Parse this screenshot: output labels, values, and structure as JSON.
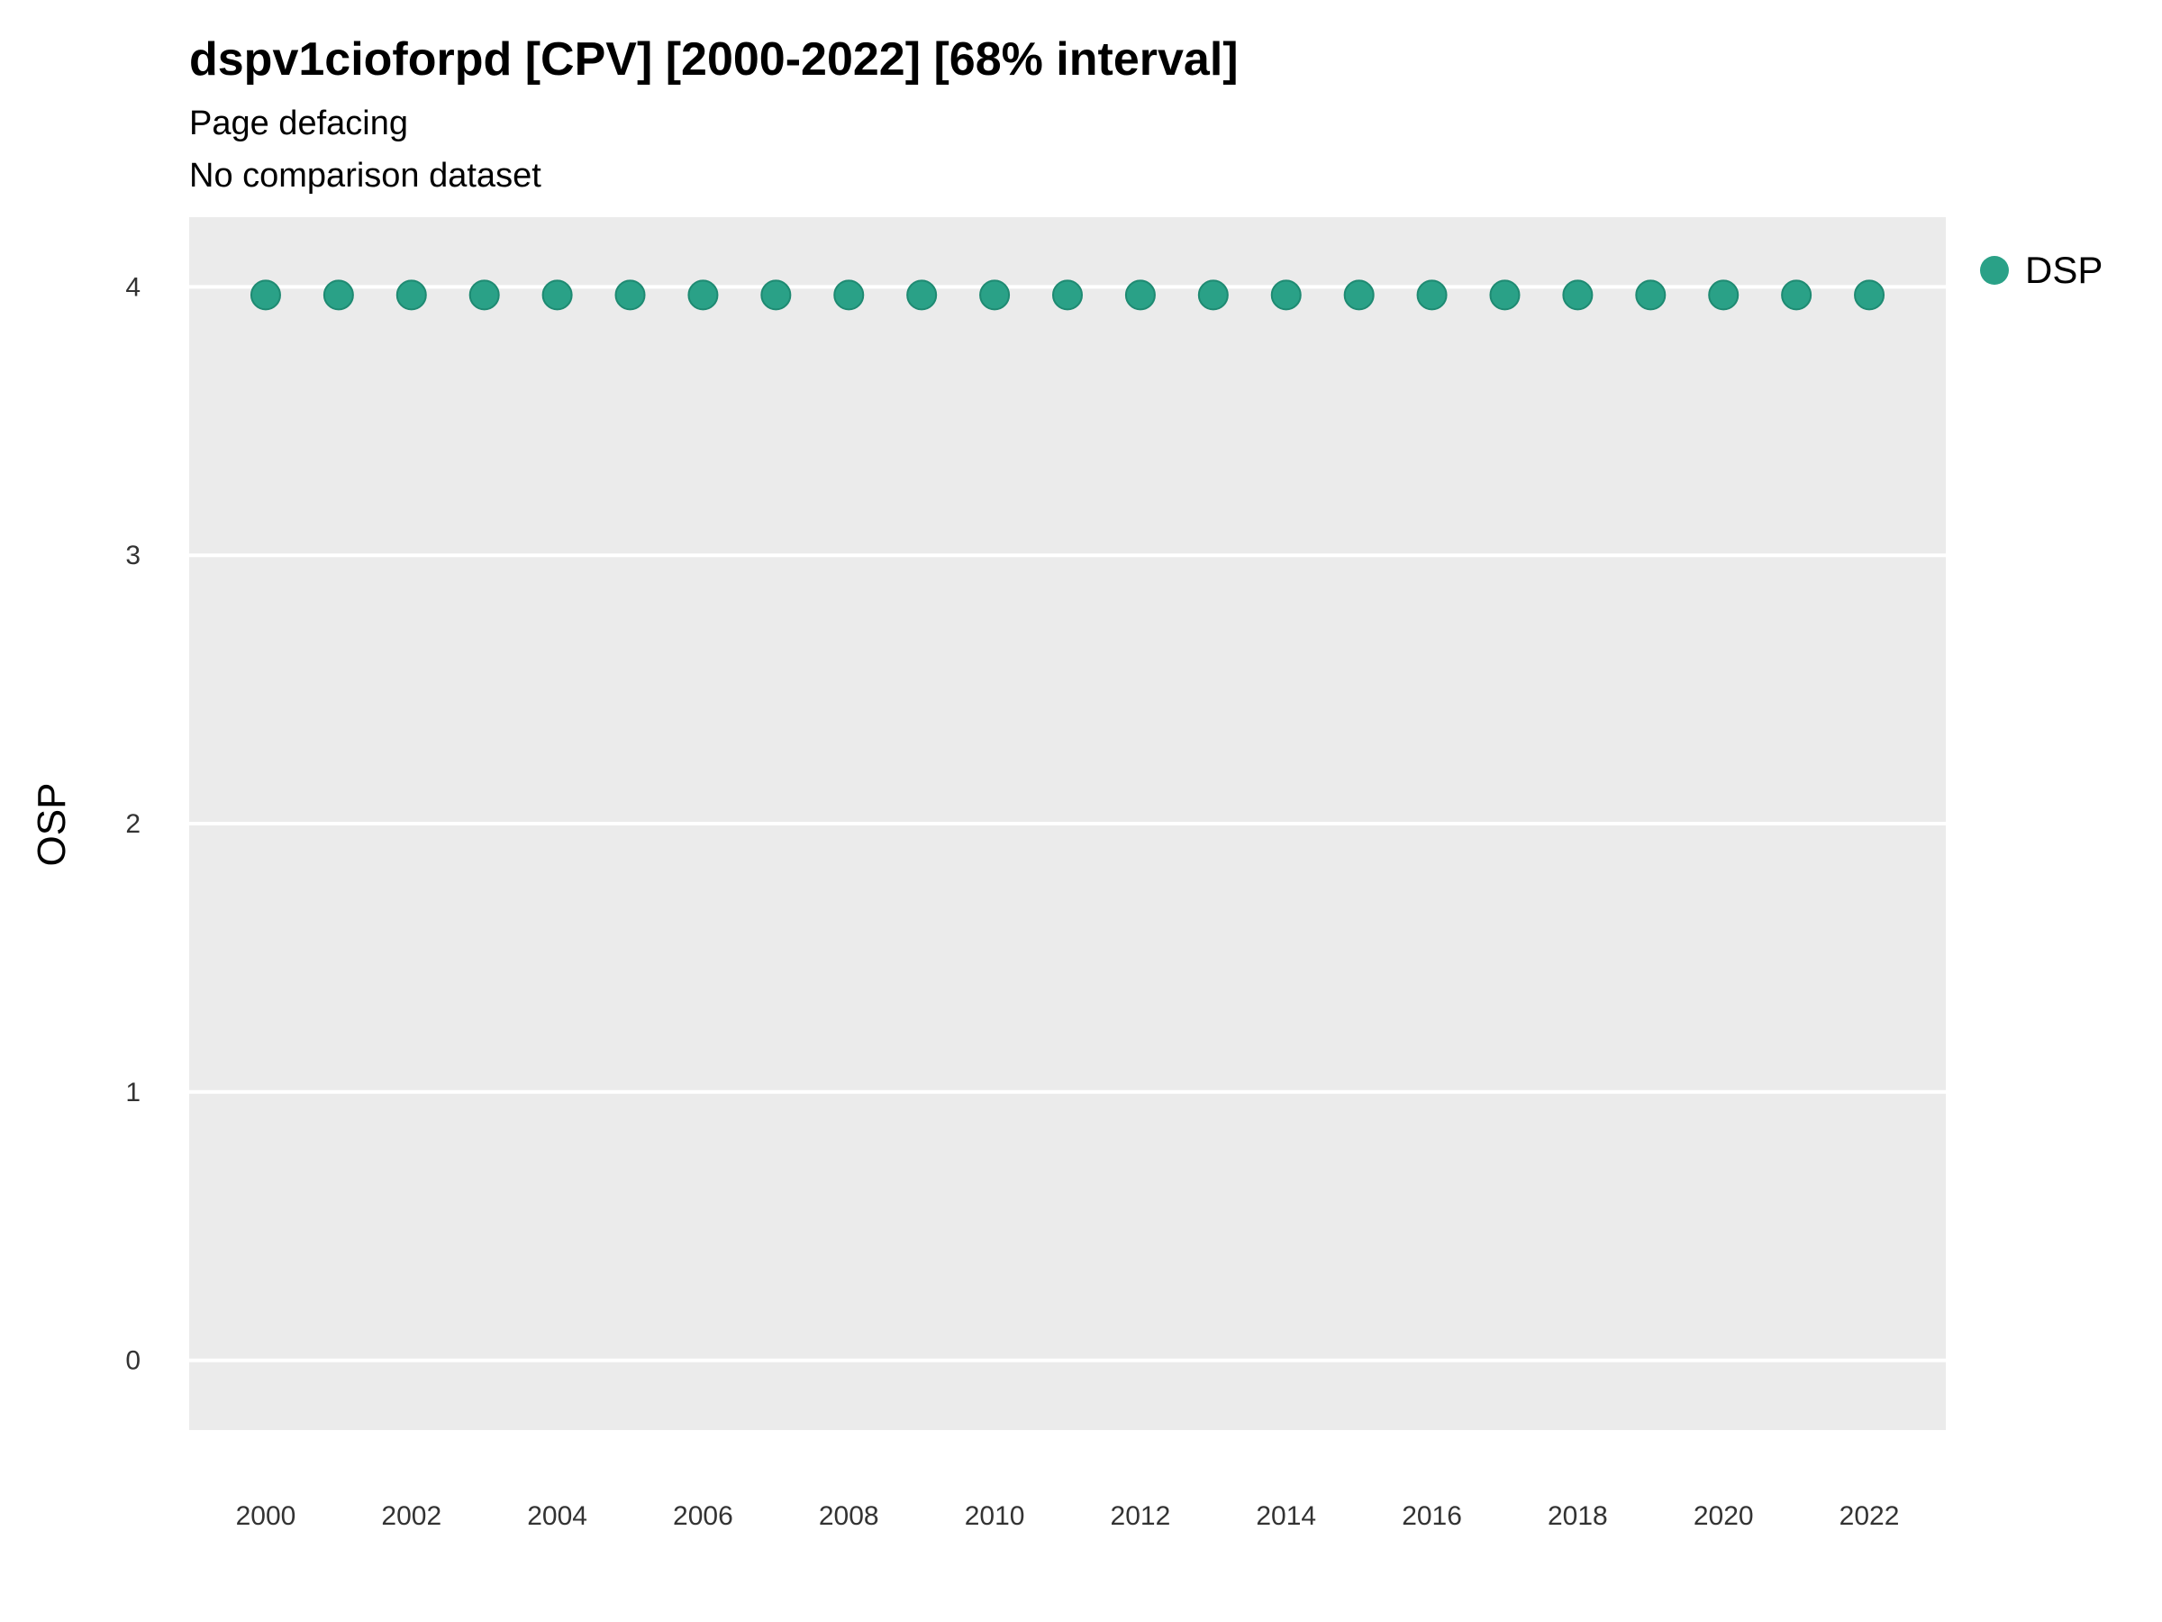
{
  "header": {
    "title": "dspv1cioforpd [CPV] [2000-2022] [68% interval]",
    "subtitle": "Page defacing",
    "comparison_note": "No comparison dataset"
  },
  "legend": {
    "items": [
      {
        "label": "DSP",
        "color": "#2AA187"
      }
    ]
  },
  "chart_data": {
    "type": "scatter",
    "title": "dspv1cioforpd [CPV] [2000-2022] [68% interval]",
    "subtitle": "Page defacing",
    "note": "No comparison dataset",
    "xlabel": "",
    "ylabel": "OSP",
    "series": [
      {
        "name": "DSP",
        "color": "#2AA187",
        "stroke": "#1E8A72",
        "x": [
          2000,
          2001,
          2002,
          2003,
          2004,
          2005,
          2006,
          2007,
          2008,
          2009,
          2010,
          2011,
          2012,
          2013,
          2014,
          2015,
          2016,
          2017,
          2018,
          2019,
          2020,
          2021,
          2022
        ],
        "y": [
          3.97,
          3.97,
          3.97,
          3.97,
          3.97,
          3.97,
          3.97,
          3.97,
          3.97,
          3.97,
          3.97,
          3.97,
          3.97,
          3.97,
          3.97,
          3.97,
          3.97,
          3.97,
          3.97,
          3.97,
          3.97,
          3.97,
          3.97
        ]
      }
    ],
    "xlim": [
      1998.95,
      2023.05
    ],
    "ylim": [
      -0.26,
      4.26
    ],
    "yticks": [
      0,
      1,
      2,
      3,
      4
    ],
    "xticks": [
      2000,
      2002,
      2004,
      2006,
      2008,
      2010,
      2012,
      2014,
      2016,
      2018,
      2020,
      2022
    ],
    "panel_bg": "#EBEBEB",
    "grid_color": "#FFFFFF",
    "grid": "major-horizontal",
    "legend_position": "right-top",
    "point_radius": 16
  }
}
